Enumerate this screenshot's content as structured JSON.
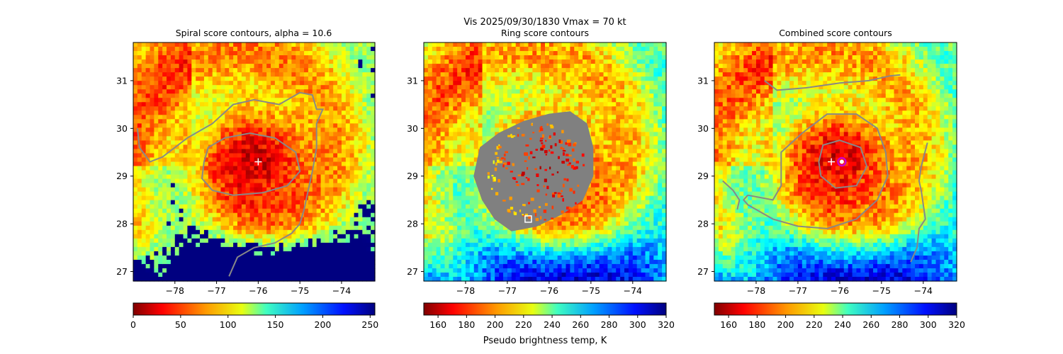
{
  "figure": {
    "suptitle_line1": "Vis  2025/09/30/1830    Vmax = 70 kt"
  },
  "chart_data": [
    {
      "type": "heatmap",
      "title": "Spiral score contours, alpha = 10.6",
      "xlabel": "",
      "ylabel": "",
      "xlim": [
        -79.0,
        -73.2
      ],
      "ylim": [
        26.8,
        31.8
      ],
      "xticks": [
        -78,
        -77,
        -76,
        -75,
        -74
      ],
      "yticks": [
        27,
        28,
        29,
        30,
        31
      ],
      "colormap": "jet_r",
      "center": [
        -76.0,
        29.3
      ],
      "markers": [
        {
          "kind": "plus",
          "x": -76.0,
          "y": 29.3,
          "color": "#ffffff"
        }
      ],
      "contour_color": "#888888",
      "colorbar": {
        "vmin": 0,
        "vmax": 255,
        "ticks": [
          0,
          50,
          100,
          150,
          200,
          250
        ],
        "label": "",
        "cmap": "jet_r"
      }
    },
    {
      "type": "heatmap",
      "title": "Ring score contours",
      "xlabel": "",
      "ylabel": "",
      "xlim": [
        -79.0,
        -73.2
      ],
      "ylim": [
        26.8,
        31.8
      ],
      "xticks": [
        -78,
        -77,
        -76,
        -75,
        -74
      ],
      "yticks": [
        27,
        28,
        29,
        30,
        31
      ],
      "colormap": "jet_r",
      "center": [
        -76.0,
        29.3
      ],
      "markers": [
        {
          "kind": "square",
          "x": -76.5,
          "y": 28.1,
          "color": "#ffffff"
        }
      ],
      "contour_color": "#808080",
      "colorbar": {
        "vmin": 150,
        "vmax": 320,
        "ticks": [
          160,
          180,
          200,
          220,
          240,
          260,
          280,
          300,
          320
        ],
        "label": "Pseudo brightness temp, K",
        "cmap": "jet_r"
      }
    },
    {
      "type": "heatmap",
      "title": "Combined score contours",
      "xlabel": "",
      "ylabel": "",
      "xlim": [
        -79.0,
        -73.2
      ],
      "ylim": [
        26.8,
        31.8
      ],
      "xticks": [
        -78,
        -77,
        -76,
        -75,
        -74
      ],
      "yticks": [
        27,
        28,
        29,
        30,
        31
      ],
      "colormap": "jet_r",
      "center": [
        -76.0,
        29.3
      ],
      "markers": [
        {
          "kind": "plus",
          "x": -76.2,
          "y": 29.3,
          "color": "#ffffff"
        },
        {
          "kind": "circle",
          "x": -75.95,
          "y": 29.3,
          "color": "#cc00cc"
        }
      ],
      "contour_color": "#888888",
      "colorbar": {
        "vmin": 150,
        "vmax": 320,
        "ticks": [
          160,
          180,
          200,
          220,
          240,
          260,
          280,
          300,
          320
        ],
        "label": "",
        "cmap": "jet"
      }
    }
  ]
}
